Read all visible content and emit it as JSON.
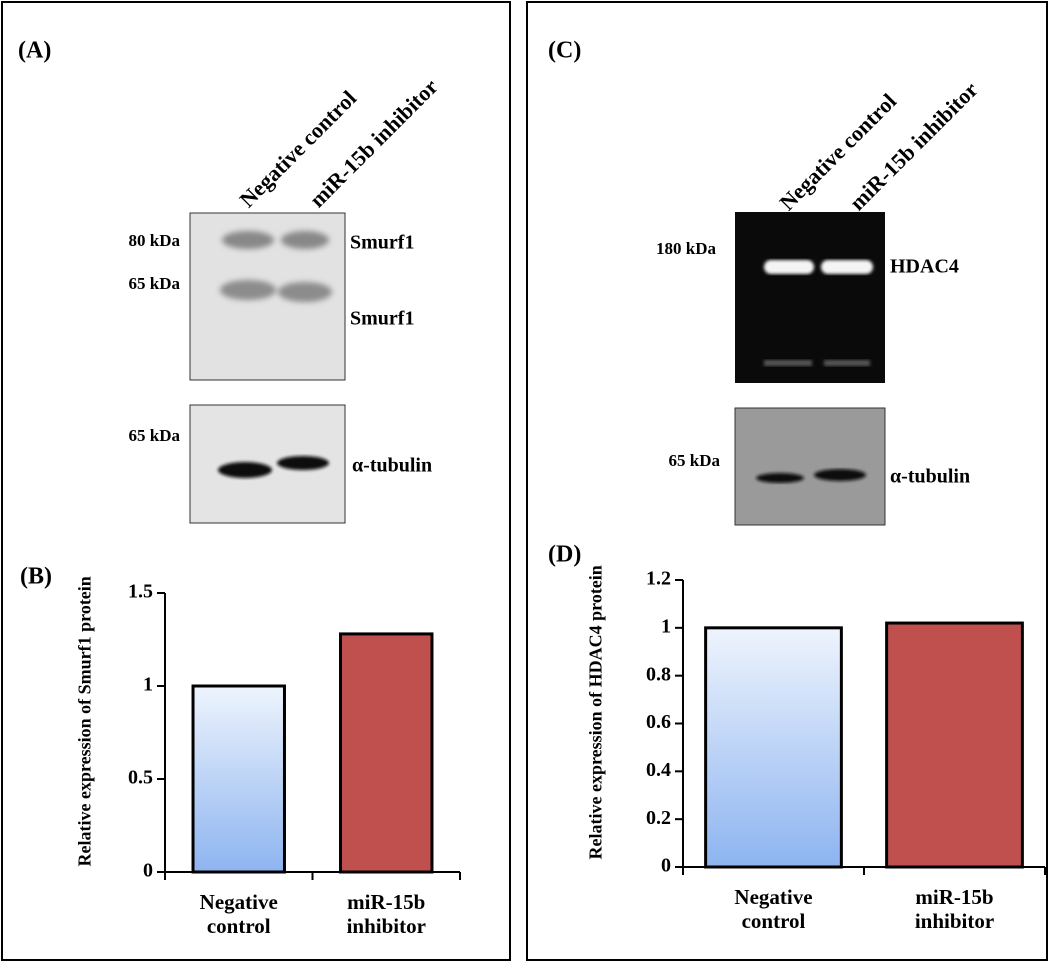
{
  "panels": [
    {
      "label": "(A)",
      "lanes": [
        "Negative control",
        "miR-15b inhibitor"
      ],
      "markers": [
        "80 kDa",
        "65 kDa"
      ],
      "bands": [
        "Smurf1",
        "Smurf1"
      ],
      "loading_marker": "65 kDa",
      "loading_band": "α-tubulin"
    },
    {
      "label": "(C)",
      "lanes": [
        "Negative control",
        "miR-15b inhibitor"
      ],
      "markers": [
        "180 kDa"
      ],
      "bands": [
        "HDAC4"
      ],
      "loading_marker": "65 kDa",
      "loading_band": "α-tubulin"
    }
  ],
  "chart_data": [
    {
      "type": "bar",
      "panel_label": "(B)",
      "ylabel": "Relative expression of Smurf1 protein",
      "categories": [
        "Negative control",
        "miR-15b inhibitor"
      ],
      "values": [
        1,
        1.28
      ],
      "colors": [
        "#8db4f0",
        "#c0504d"
      ],
      "gradient": [
        true,
        false
      ],
      "ylim": [
        0,
        1.5
      ],
      "yticks": [
        0,
        0.5,
        1,
        1.5
      ]
    },
    {
      "type": "bar",
      "panel_label": "(D)",
      "ylabel": "Relative expression of HDAC4 protein",
      "categories": [
        "Negative control",
        "miR-15b inhibitor"
      ],
      "values": [
        1,
        1.02
      ],
      "colors": [
        "#8db4f0",
        "#c0504d"
      ],
      "gradient": [
        true,
        false
      ],
      "ylim": [
        0,
        1.2
      ],
      "yticks": [
        0,
        0.2,
        0.4,
        0.6,
        0.8,
        1,
        1.2
      ]
    }
  ]
}
